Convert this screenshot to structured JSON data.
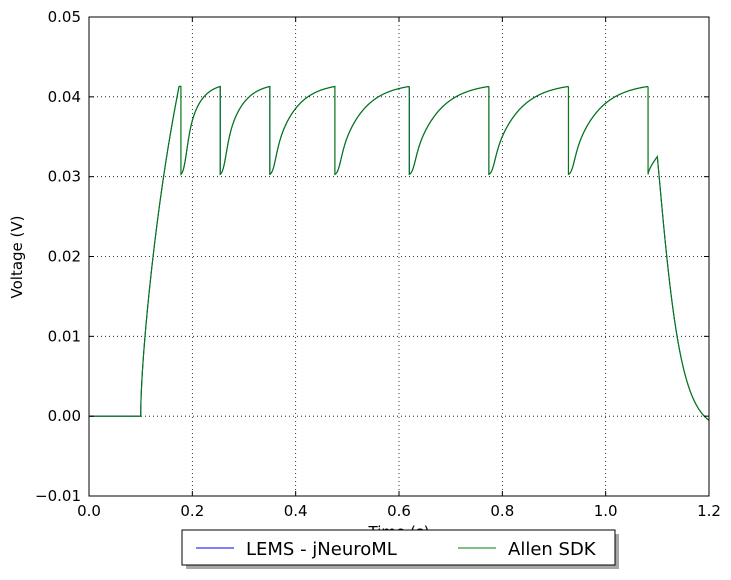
{
  "chart_data": {
    "type": "line",
    "xlabel": "Time (s)",
    "ylabel": "Voltage (V)",
    "xlim": [
      0.0,
      1.2
    ],
    "ylim": [
      -0.01,
      0.05
    ],
    "xticks": [
      0.0,
      0.2,
      0.4,
      0.6,
      0.8,
      1.0,
      1.2
    ],
    "xtick_labels": [
      "0.0",
      "0.2",
      "0.4",
      "0.6",
      "0.8",
      "1.0",
      "1.2"
    ],
    "yticks": [
      -0.01,
      0.0,
      0.01,
      0.02,
      0.03,
      0.04,
      0.05
    ],
    "ytick_labels": [
      "−0.01",
      "0.00",
      "0.01",
      "0.02",
      "0.03",
      "0.04",
      "0.05"
    ],
    "grid": true,
    "legend_position": "bottom-center",
    "stim_start": 0.1,
    "stim_end": 1.1,
    "v_rest": 0.0,
    "v_threshold": 0.0413,
    "v_reset": 0.0303,
    "spike_times": [
      0.178,
      0.254,
      0.35,
      0.476,
      0.62,
      0.774,
      0.928,
      1.082
    ],
    "end_value": -0.0018,
    "series": [
      {
        "name": "LEMS - jNeuroML",
        "color": "#0000ff"
      },
      {
        "name": "Allen SDK",
        "color": "#008000"
      }
    ]
  }
}
